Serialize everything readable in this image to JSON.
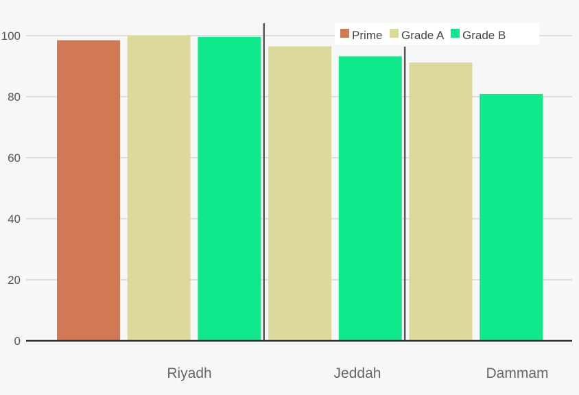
{
  "chart_data": {
    "type": "bar",
    "categories": [
      "Riyadh",
      "Jeddah",
      "Dammam"
    ],
    "series": [
      {
        "name": "Prime",
        "color": "#d17855",
        "values": [
          98.5,
          null,
          null
        ]
      },
      {
        "name": "Grade A",
        "color": "#dbd99b",
        "values": [
          100,
          96.5,
          91.2
        ]
      },
      {
        "name": "Grade B",
        "color": "#10e88c",
        "values": [
          99.6,
          93.2,
          80.9
        ]
      }
    ],
    "ylim": [
      0,
      100
    ],
    "yticks": [
      0,
      20,
      40,
      60,
      80,
      100
    ],
    "grid": true,
    "legend_position": "top-right",
    "title": "",
    "xlabel": "",
    "ylabel": ""
  }
}
